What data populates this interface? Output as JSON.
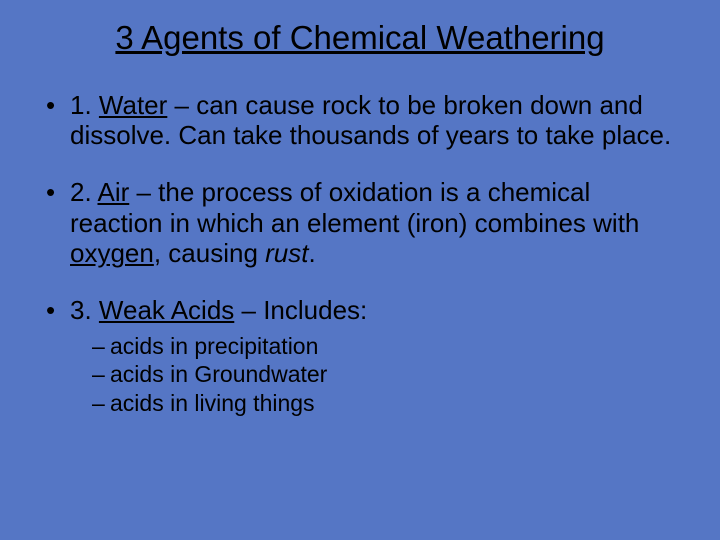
{
  "background_color": "#5576c5",
  "text_color": "#000000",
  "title_fontsize": 33,
  "body_fontsize": 26,
  "sub_fontsize": 23,
  "font_family": "Arial",
  "title": "3 Agents of Chemical Weathering",
  "bullets": [
    {
      "prefix": "1. ",
      "term": "Water",
      "rest": " – can cause rock to be broken down and dissolve.  Can take thousands of years to take place."
    },
    {
      "prefix": "2. ",
      "term": "Air",
      "rest_a": " – the process of oxidation is a chemical reaction in which an element (iron) combines with ",
      "key": "oxygen",
      "rest_b": ", causing ",
      "emph": "rust",
      "rest_c": "."
    },
    {
      "prefix": "3. ",
      "term": "Weak Acids",
      "rest": " – Includes:",
      "sub": [
        "acids in precipitation",
        "acids in Groundwater",
        "acids in living things"
      ]
    }
  ]
}
